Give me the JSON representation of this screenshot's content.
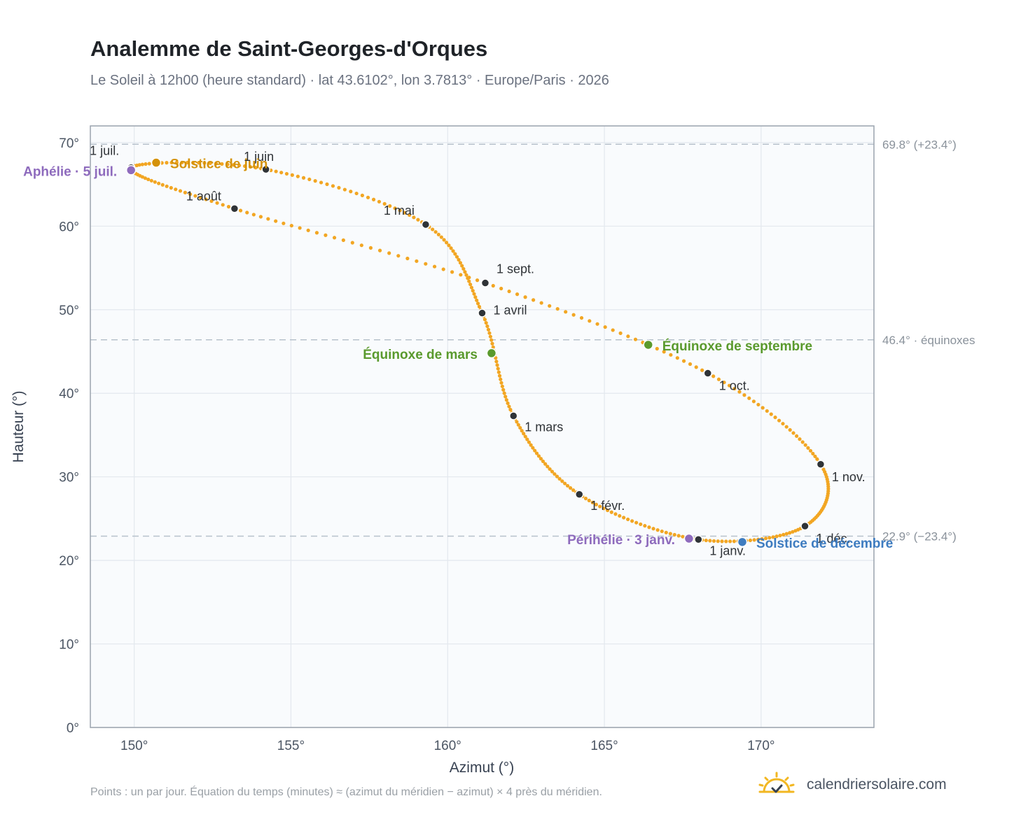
{
  "title": "Analemme de Saint-Georges-d'Orques",
  "subtitle": "Le Soleil à 12h00 (heure standard) · lat 43.6102°, lon 3.7813° · Europe/Paris · 2026",
  "footnote": "Points : un par jour. Équation du temps (minutes) ≈ (azimut du méridien − azimut) × 4 près du méridien.",
  "brand": {
    "name": "calendriersolaire.com",
    "icon": "sun-check-icon"
  },
  "colors": {
    "curve": "#f2a623",
    "month_point": "#2f3337",
    "solstice_june": "#d4920a",
    "solstice_december": "#3e7cc0",
    "equinox": "#5a9a2d",
    "apsis": "#8e6bbd"
  },
  "chart_data": {
    "type": "scatter",
    "xlabel": "Azimut (°)",
    "ylabel": "Hauteur (°)",
    "xlim": [
      148.6,
      173.6
    ],
    "ylim": [
      0,
      72
    ],
    "xticks": [
      150,
      155,
      160,
      165,
      170
    ],
    "yticks": [
      0,
      10,
      20,
      30,
      40,
      50,
      60,
      70
    ],
    "xtick_labels": [
      "150°",
      "155°",
      "160°",
      "165°",
      "170°"
    ],
    "ytick_labels": [
      "0°",
      "10°",
      "20°",
      "30°",
      "40°",
      "50°",
      "60°",
      "70°"
    ],
    "grid": true,
    "reference_lines": [
      {
        "y": 69.8,
        "label": "69.8° (+23.4°)"
      },
      {
        "y": 46.4,
        "label": "46.4° · équinoxes"
      },
      {
        "y": 22.9,
        "label": "22.9° (−23.4°)"
      }
    ],
    "month_points": [
      {
        "label": "1 janv.",
        "x": 168.0,
        "y": 22.5
      },
      {
        "label": "1 févr.",
        "x": 164.2,
        "y": 27.9
      },
      {
        "label": "1 mars",
        "x": 162.1,
        "y": 37.3
      },
      {
        "label": "1 avril",
        "x": 161.1,
        "y": 49.6
      },
      {
        "label": "1 mai",
        "x": 159.3,
        "y": 60.2
      },
      {
        "label": "1 juin",
        "x": 154.2,
        "y": 66.8
      },
      {
        "label": "1 juil.",
        "x": 149.9,
        "y": 67.0
      },
      {
        "label": "1 août",
        "x": 153.2,
        "y": 62.1
      },
      {
        "label": "1 sept.",
        "x": 161.2,
        "y": 53.2
      },
      {
        "label": "1 oct.",
        "x": 168.3,
        "y": 42.4
      },
      {
        "label": "1 nov.",
        "x": 171.9,
        "y": 31.5
      },
      {
        "label": "1 déc.",
        "x": 171.4,
        "y": 24.1
      }
    ],
    "events": [
      {
        "label": "Solstice de juin",
        "x": 150.7,
        "y": 67.6,
        "kind": "solstice_june"
      },
      {
        "label": "Solstice de décembre",
        "x": 169.4,
        "y": 22.2,
        "kind": "solstice_december"
      },
      {
        "label": "Équinoxe de mars",
        "x": 161.4,
        "y": 44.8,
        "kind": "equinox"
      },
      {
        "label": "Équinoxe de septembre",
        "x": 166.4,
        "y": 45.8,
        "kind": "equinox"
      },
      {
        "label": "Aphélie · 5 juil.",
        "x": 149.9,
        "y": 66.7,
        "kind": "apsis"
      },
      {
        "label": "Périhélie · 3 janv.",
        "x": 167.7,
        "y": 22.6,
        "kind": "apsis"
      }
    ]
  }
}
